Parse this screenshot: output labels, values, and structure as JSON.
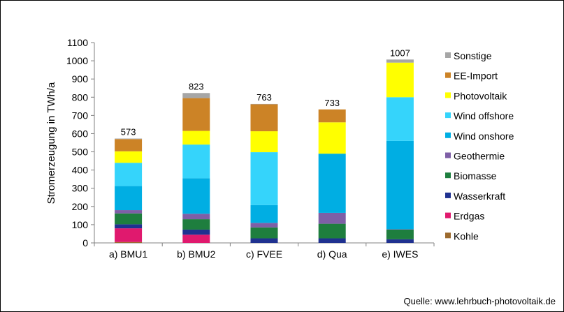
{
  "chart_data": {
    "type": "bar",
    "stacked": true,
    "ylabel": "Stromerzeugung  in TWh/a",
    "ylim": [
      0,
      1100
    ],
    "yticks": [
      0,
      100,
      200,
      300,
      400,
      500,
      600,
      700,
      800,
      900,
      1000,
      1100
    ],
    "grid": false,
    "legend_position": "right",
    "categories": [
      "a) BMU1",
      "b) BMU2",
      "c) FVEE",
      "d) Qua",
      "e) IWES"
    ],
    "totals": [
      573,
      823,
      763,
      733,
      1007
    ],
    "series": [
      {
        "name": "Kohle",
        "color": "#9C6A2E",
        "values": [
          5,
          0,
          0,
          0,
          0
        ]
      },
      {
        "name": "Erdgas",
        "color": "#E0196E",
        "values": [
          75,
          45,
          0,
          0,
          0
        ]
      },
      {
        "name": "Wasserkraft",
        "color": "#1F3190",
        "values": [
          22,
          28,
          25,
          25,
          20
        ]
      },
      {
        "name": "Biomasse",
        "color": "#1E7E3E",
        "values": [
          60,
          57,
          60,
          80,
          53
        ]
      },
      {
        "name": "Geothermie",
        "color": "#7E5FA6",
        "values": [
          18,
          30,
          25,
          60,
          2
        ]
      },
      {
        "name": "Wind onshore",
        "color": "#00AEE3",
        "values": [
          132,
          195,
          98,
          325,
          485
        ]
      },
      {
        "name": "Wind offshore",
        "color": "#35D4FB",
        "values": [
          128,
          185,
          290,
          0,
          240
        ]
      },
      {
        "name": "Photovoltaik",
        "color": "#FFFF00",
        "values": [
          63,
          75,
          115,
          172,
          190
        ]
      },
      {
        "name": "EE-Import",
        "color": "#CC8326",
        "values": [
          67,
          180,
          148,
          71,
          0
        ]
      },
      {
        "name": "Sonstige",
        "color": "#A6A6A6",
        "values": [
          3,
          28,
          2,
          0,
          17
        ]
      }
    ]
  },
  "source_note": "Quelle: www.lehrbuch-photovoltaik.de"
}
